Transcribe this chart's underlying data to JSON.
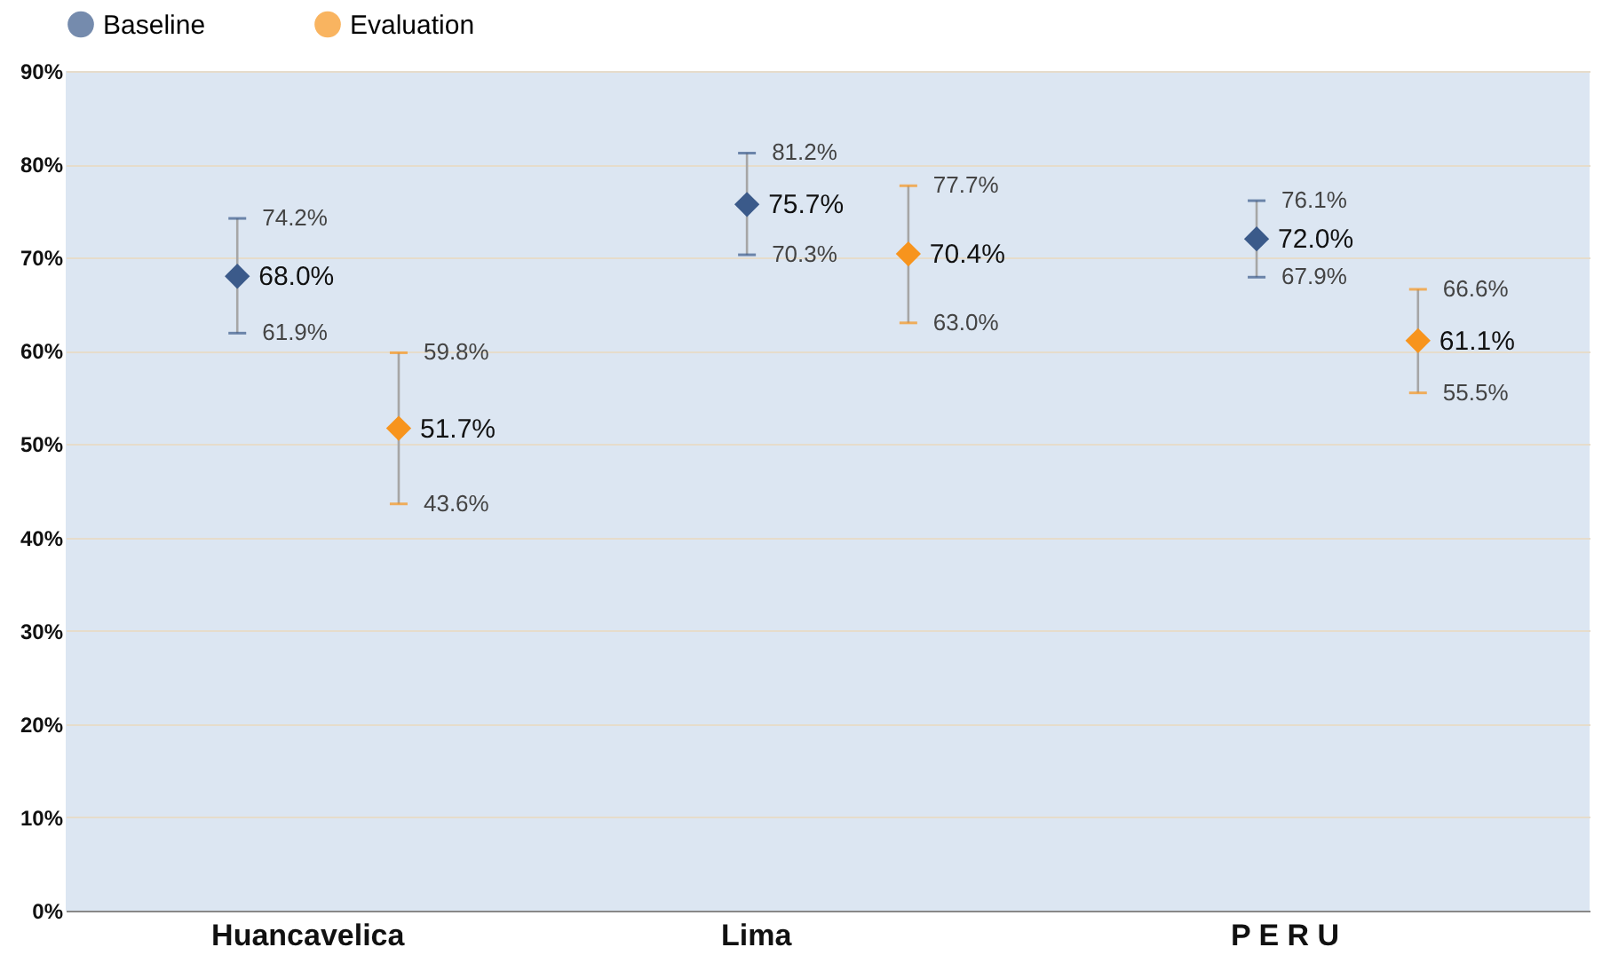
{
  "chart_data": {
    "type": "scatter",
    "categories": [
      "Huancavelica",
      "Lima",
      "P E R U"
    ],
    "series": [
      {
        "name": "Baseline",
        "color": "#3b5a8a",
        "values": [
          68.0,
          75.7,
          72.0
        ],
        "errors": [
          [
            61.9,
            74.2
          ],
          [
            70.3,
            81.2
          ],
          [
            67.9,
            76.1
          ]
        ],
        "value_labels": [
          "68.0%",
          "75.7%",
          "72.0%"
        ]
      },
      {
        "name": "Evaluation",
        "color": "#f7941d",
        "values": [
          51.7,
          70.4,
          61.1
        ],
        "errors": [
          [
            43.6,
            59.8
          ],
          [
            63.0,
            77.7
          ],
          [
            55.5,
            66.6
          ]
        ],
        "value_labels": [
          "51.7%",
          "70.4%",
          "61.1%"
        ]
      }
    ],
    "annotations": [
      "74.2%",
      "61.9%",
      "59.8%",
      "43.6%",
      "81.2%",
      "70.3%",
      "77.7%",
      "63.0%",
      "76.1%",
      "67.9%",
      "66.6%",
      "55.5%"
    ],
    "ylim": [
      0,
      90
    ],
    "yticks": [
      {
        "value": 0,
        "label": "0%"
      },
      {
        "value": 10,
        "label": "10%"
      },
      {
        "value": 20,
        "label": "20%"
      },
      {
        "value": 30,
        "label": "30%"
      },
      {
        "value": 40,
        "label": "40%"
      },
      {
        "value": 50,
        "label": "50%"
      },
      {
        "value": 60,
        "label": "60%"
      },
      {
        "value": 70,
        "label": "70%"
      },
      {
        "value": 80,
        "label": "80%"
      },
      {
        "value": 90,
        "label": "90%"
      }
    ],
    "grid": "y",
    "legend": "top",
    "marker": "diamond"
  }
}
